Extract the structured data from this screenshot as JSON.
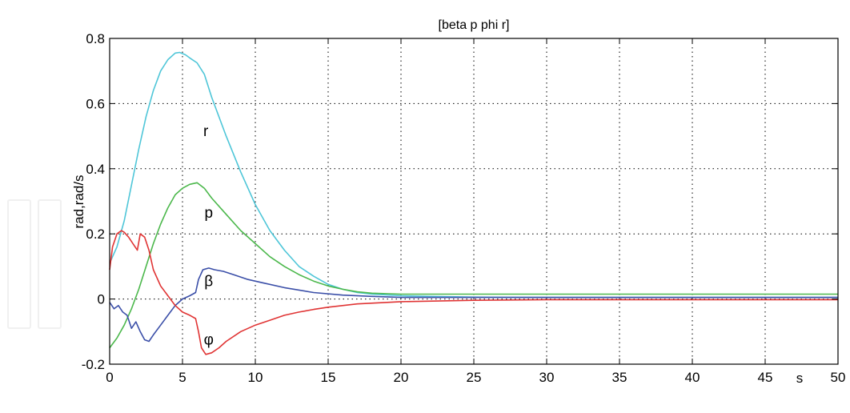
{
  "chart_data": {
    "type": "line",
    "title": "[beta p phi r]",
    "ylabel": "rad,rad/s",
    "xlabel": "s",
    "xlim": [
      0,
      50
    ],
    "ylim": [
      -0.2,
      0.8
    ],
    "xticks": [
      0,
      5,
      10,
      15,
      20,
      25,
      30,
      35,
      40,
      45,
      50
    ],
    "yticks": [
      -0.2,
      0,
      0.2,
      0.4,
      0.6,
      0.8
    ],
    "xtick_labels": [
      "0",
      "5",
      "10",
      "15",
      "20",
      "25",
      "30",
      "35",
      "40",
      "45",
      "50"
    ],
    "ytick_labels": [
      "-0.2",
      "0",
      "0.2",
      "0.4",
      "0.6",
      "0.8"
    ],
    "grid": true,
    "series": [
      {
        "name": "r",
        "color": "#4fc6d8",
        "x": [
          0,
          0.5,
          1,
          1.5,
          2,
          2.5,
          3,
          3.5,
          4,
          4.5,
          4.8,
          5.2,
          5.5,
          6,
          6.5,
          7,
          8,
          9,
          10,
          11,
          12,
          13,
          14,
          15,
          16,
          17,
          18,
          20,
          22,
          25,
          30,
          35,
          40,
          45,
          50
        ],
        "y": [
          0.11,
          0.16,
          0.24,
          0.35,
          0.46,
          0.56,
          0.64,
          0.7,
          0.735,
          0.755,
          0.757,
          0.75,
          0.74,
          0.725,
          0.69,
          0.62,
          0.5,
          0.39,
          0.29,
          0.21,
          0.15,
          0.1,
          0.07,
          0.045,
          0.03,
          0.02,
          0.015,
          0.01,
          0.008,
          0.006,
          0.005,
          0.005,
          0.005,
          0.005,
          0.005
        ]
      },
      {
        "name": "p",
        "color": "#4cb84c",
        "x": [
          0,
          0.5,
          1,
          1.5,
          2,
          2.5,
          3,
          3.5,
          4,
          4.5,
          5,
          5.5,
          6,
          6.5,
          7,
          8,
          9,
          10,
          11,
          12,
          13,
          14,
          15,
          16,
          17,
          18,
          20,
          22,
          25,
          30,
          35,
          40,
          45,
          50
        ],
        "y": [
          -0.15,
          -0.12,
          -0.08,
          -0.03,
          0.03,
          0.1,
          0.17,
          0.23,
          0.28,
          0.32,
          0.34,
          0.352,
          0.357,
          0.34,
          0.31,
          0.26,
          0.21,
          0.17,
          0.13,
          0.1,
          0.075,
          0.055,
          0.04,
          0.03,
          0.022,
          0.018,
          0.015,
          0.015,
          0.015,
          0.015,
          0.015,
          0.015,
          0.015,
          0.015
        ]
      },
      {
        "name": "β",
        "color": "#3b4fa8",
        "x": [
          0,
          0.3,
          0.6,
          0.9,
          1.2,
          1.5,
          1.8,
          2.1,
          2.4,
          2.7,
          3.0,
          3.5,
          4.0,
          4.5,
          5.0,
          5.5,
          5.9,
          6.1,
          6.4,
          6.8,
          7.2,
          7.8,
          8.5,
          9.5,
          10.5,
          12,
          14,
          16,
          18,
          20,
          25,
          30,
          35,
          40,
          45,
          50
        ],
        "y": [
          -0.01,
          -0.03,
          -0.02,
          -0.04,
          -0.05,
          -0.09,
          -0.07,
          -0.1,
          -0.125,
          -0.13,
          -0.11,
          -0.08,
          -0.05,
          -0.02,
          0.0,
          0.01,
          0.02,
          0.06,
          0.09,
          0.095,
          0.09,
          0.085,
          0.075,
          0.06,
          0.05,
          0.035,
          0.02,
          0.012,
          0.008,
          0.005,
          0.005,
          0.005,
          0.005,
          0.005,
          0.005,
          0.005
        ]
      },
      {
        "name": "φ",
        "color": "#e03434",
        "x": [
          0,
          0.2,
          0.5,
          0.8,
          1.0,
          1.3,
          1.6,
          1.9,
          2.1,
          2.4,
          2.7,
          3.0,
          3.5,
          4.0,
          4.5,
          5.0,
          5.5,
          5.9,
          6.1,
          6.3,
          6.6,
          7.0,
          7.5,
          8,
          9,
          10,
          11,
          12,
          13,
          14,
          15,
          17,
          20,
          25,
          30,
          35,
          40,
          45,
          50
        ],
        "y": [
          0.09,
          0.16,
          0.2,
          0.21,
          0.205,
          0.19,
          0.17,
          0.15,
          0.2,
          0.19,
          0.15,
          0.09,
          0.04,
          0.01,
          -0.02,
          -0.04,
          -0.05,
          -0.06,
          -0.1,
          -0.15,
          -0.17,
          -0.165,
          -0.15,
          -0.13,
          -0.1,
          -0.08,
          -0.065,
          -0.05,
          -0.04,
          -0.032,
          -0.025,
          -0.015,
          -0.008,
          -0.004,
          -0.002,
          -0.002,
          -0.002,
          -0.002,
          -0.002
        ]
      }
    ],
    "annotations": [
      {
        "text": "r",
        "x": 6.6,
        "y": 0.5
      },
      {
        "text": "p",
        "x": 6.8,
        "y": 0.25
      },
      {
        "text": "β",
        "x": 6.8,
        "y": 0.04
      },
      {
        "text": "φ",
        "x": 6.8,
        "y": -0.14
      }
    ]
  }
}
